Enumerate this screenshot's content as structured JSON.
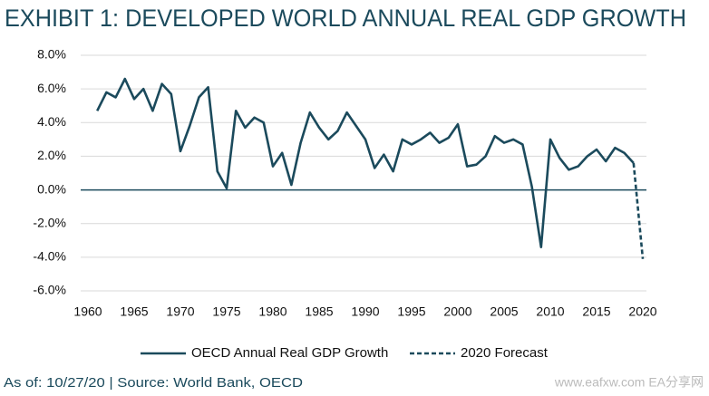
{
  "chart_data": {
    "type": "line",
    "title": "EXHIBIT 1: DEVELOPED WORLD ANNUAL REAL GDP GROWTH",
    "footnote": "As of: 10/27/20 | Source: World Bank, OECD",
    "watermark": "www.eafxw.com  EA分享网",
    "x": [
      1961,
      1962,
      1963,
      1964,
      1965,
      1966,
      1967,
      1968,
      1969,
      1970,
      1971,
      1972,
      1973,
      1974,
      1975,
      1976,
      1977,
      1978,
      1979,
      1980,
      1981,
      1982,
      1983,
      1984,
      1985,
      1986,
      1987,
      1988,
      1989,
      1990,
      1991,
      1992,
      1993,
      1994,
      1995,
      1996,
      1997,
      1998,
      1999,
      2000,
      2001,
      2002,
      2003,
      2004,
      2005,
      2006,
      2007,
      2008,
      2009,
      2010,
      2011,
      2012,
      2013,
      2014,
      2015,
      2016,
      2017,
      2018,
      2019,
      2020
    ],
    "series": [
      {
        "name": "OECD Annual Real GDP Growth",
        "color": "#1b4a5c",
        "dash": false,
        "values": [
          4.7,
          5.8,
          5.5,
          6.6,
          5.4,
          6.0,
          4.7,
          6.3,
          5.7,
          2.3,
          3.8,
          5.5,
          6.1,
          1.1,
          0.1,
          4.7,
          3.7,
          4.3,
          4.0,
          1.4,
          2.2,
          0.3,
          2.8,
          4.6,
          3.7,
          3.0,
          3.5,
          4.6,
          3.8,
          3.0,
          1.3,
          2.1,
          1.1,
          3.0,
          2.7,
          3.0,
          3.4,
          2.8,
          3.1,
          3.9,
          1.4,
          1.5,
          2.0,
          3.2,
          2.8,
          3.0,
          2.7,
          0.2,
          -3.4,
          3.0,
          1.9,
          1.2,
          1.4,
          2.0,
          2.4,
          1.7,
          2.5,
          2.2,
          1.6,
          null
        ]
      },
      {
        "name": "2020 Forecast",
        "color": "#1b4a5c",
        "dash": true,
        "values": [
          null,
          null,
          null,
          null,
          null,
          null,
          null,
          null,
          null,
          null,
          null,
          null,
          null,
          null,
          null,
          null,
          null,
          null,
          null,
          null,
          null,
          null,
          null,
          null,
          null,
          null,
          null,
          null,
          null,
          null,
          null,
          null,
          null,
          null,
          null,
          null,
          null,
          null,
          null,
          null,
          null,
          null,
          null,
          null,
          null,
          null,
          null,
          null,
          null,
          null,
          null,
          null,
          null,
          null,
          null,
          null,
          null,
          null,
          1.6,
          -4.1
        ]
      }
    ],
    "xlim": [
      1960,
      2020
    ],
    "xticks": [
      1960,
      1965,
      1970,
      1975,
      1980,
      1985,
      1990,
      1995,
      2000,
      2005,
      2010,
      2015,
      2020
    ],
    "ylim": [
      -6,
      8
    ],
    "yticks": [
      {
        "value": -6,
        "label": "-6.0%"
      },
      {
        "value": -4,
        "label": "-4.0%"
      },
      {
        "value": -2,
        "label": "-2.0%"
      },
      {
        "value": 0,
        "label": "0.0%"
      },
      {
        "value": 2,
        "label": "2.0%"
      },
      {
        "value": 4,
        "label": "4.0%"
      },
      {
        "value": 6,
        "label": "6.0%"
      },
      {
        "value": 8,
        "label": "8.0%"
      }
    ],
    "grid": true,
    "legend": "bottom"
  }
}
